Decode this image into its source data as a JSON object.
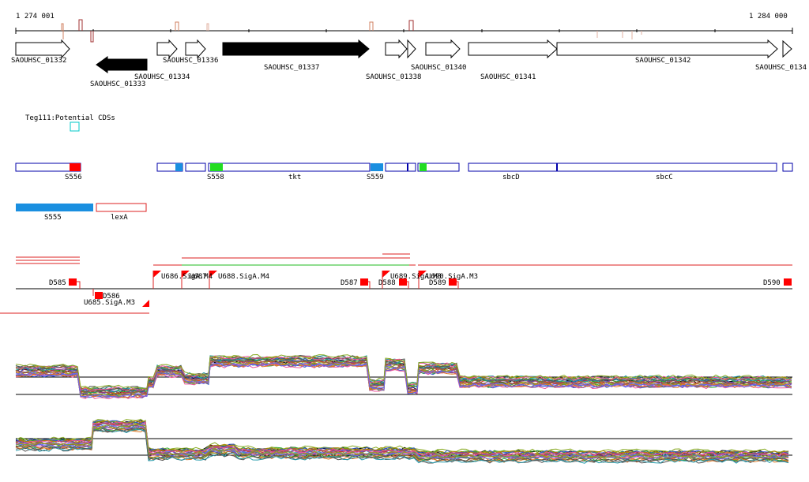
{
  "ruler": {
    "start_label": "1 274 001",
    "end_label": "1 284 000",
    "start": 1274001,
    "end": 1284000
  },
  "colors": {
    "axis": "#000000",
    "peak": "#a0522d",
    "gene_outline": "#000000",
    "gene_reverse_fill": "#000000",
    "potential_cds": "#00c8c8",
    "feature_outline": "#0000aa",
    "s_blue": "#1a8fe0",
    "s_red": "#ff0000",
    "s_green": "#22dd22",
    "region_line_red": "#dd2222",
    "region_line_green": "#22bb22"
  },
  "genes": [
    {
      "id": "SAOUHSC_01332",
      "strand": "+",
      "filled": false
    },
    {
      "id": "SAOUHSC_01333",
      "strand": "-",
      "filled": true
    },
    {
      "id": "SAOUHSC_01334",
      "strand": "+",
      "filled": false
    },
    {
      "id": "SAOUHSC_01336",
      "strand": "+",
      "filled": false
    },
    {
      "id": "SAOUHSC_01337",
      "strand": "+",
      "filled": true
    },
    {
      "id": "SAOUHSC_01338",
      "strand": "+",
      "filled": false
    },
    {
      "id": "SAOUHSC_01340",
      "strand": "+",
      "filled": false
    },
    {
      "id": "SAOUHSC_01341",
      "strand": "+",
      "filled": false
    },
    {
      "id": "SAOUHSC_01342",
      "strand": "+",
      "filled": false
    },
    {
      "id": "SAOUHSC_0134",
      "strand": "+",
      "filled": false
    }
  ],
  "potential_cds_label": "Teg111:Potential CDSs",
  "feature_labels": {
    "S556": "S556",
    "S558": "S558",
    "tkt": "tkt",
    "S559": "S559",
    "sbcD": "sbcD",
    "sbcC": "sbcC",
    "S555": "S555",
    "lexA": "lexA"
  },
  "segment_labels": [
    "D585",
    "D586",
    "U685.SigA.M3",
    "U686.SigA.M4",
    "U687",
    "U688.SigA.M4",
    "D587",
    "D588",
    "U689.SigA.M3",
    "U690.SigA.M3",
    "D589",
    "D590"
  ]
}
